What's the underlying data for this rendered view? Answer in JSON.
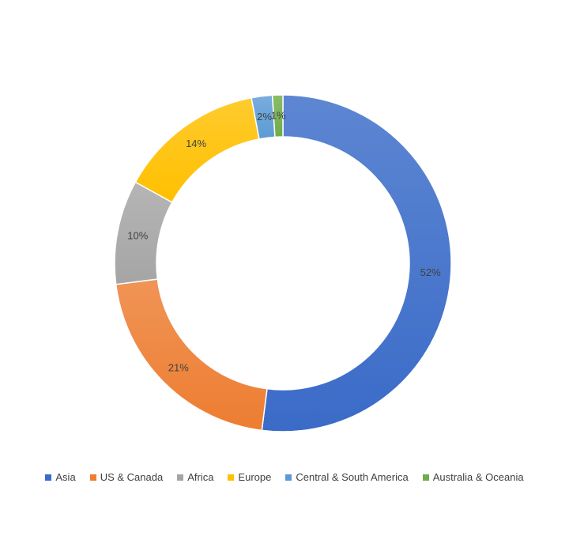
{
  "chart_data": {
    "type": "pie",
    "variant": "doughnut",
    "categories": [
      "Asia",
      "US & Canada",
      "Africa",
      "Europe",
      "Central & South America",
      "Australia & Oceania"
    ],
    "values": [
      52,
      21,
      10,
      14,
      2,
      1
    ],
    "value_labels": [
      "52%",
      "21%",
      "10%",
      "14%",
      "2%",
      "1%"
    ],
    "colors": [
      "#3A6BC8",
      "#ED7D31",
      "#A5A5A5",
      "#FFC000",
      "#5B9BD5",
      "#70AD47"
    ],
    "legend_position": "bottom",
    "start_angle": "12 o'clock",
    "direction": "clockwise"
  }
}
